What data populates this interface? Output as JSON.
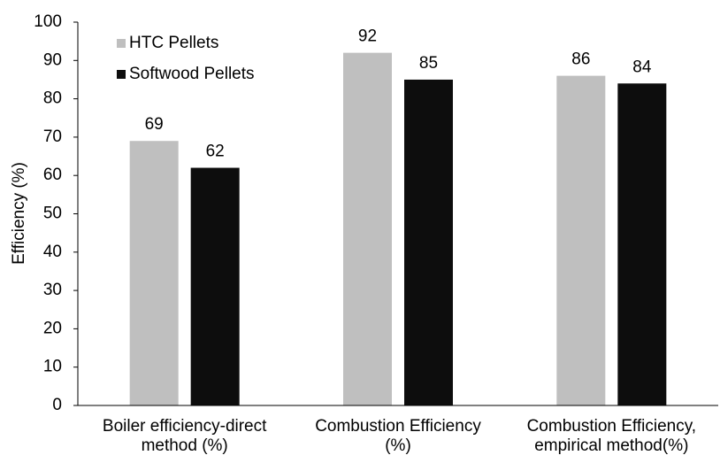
{
  "chart_data": {
    "type": "bar",
    "y_label": "Efficiency (%)",
    "categories": [
      "Boiler efficiency-direct\nmethod (%)",
      "Combustion Efficiency\n(%)",
      "Combustion Efficiency,\nempirical method(%)"
    ],
    "series": [
      {
        "name": "HTC Pellets",
        "color": "#bfbfbf",
        "values": [
          69,
          92,
          86
        ]
      },
      {
        "name": "Softwood Pellets",
        "color": "#0d0d0d",
        "values": [
          62,
          85,
          84
        ]
      }
    ],
    "ylim": [
      0,
      100
    ],
    "yticks": [
      0,
      10,
      20,
      30,
      40,
      50,
      60,
      70,
      80,
      90,
      100
    ],
    "grid": false,
    "legend": "upper-left"
  }
}
